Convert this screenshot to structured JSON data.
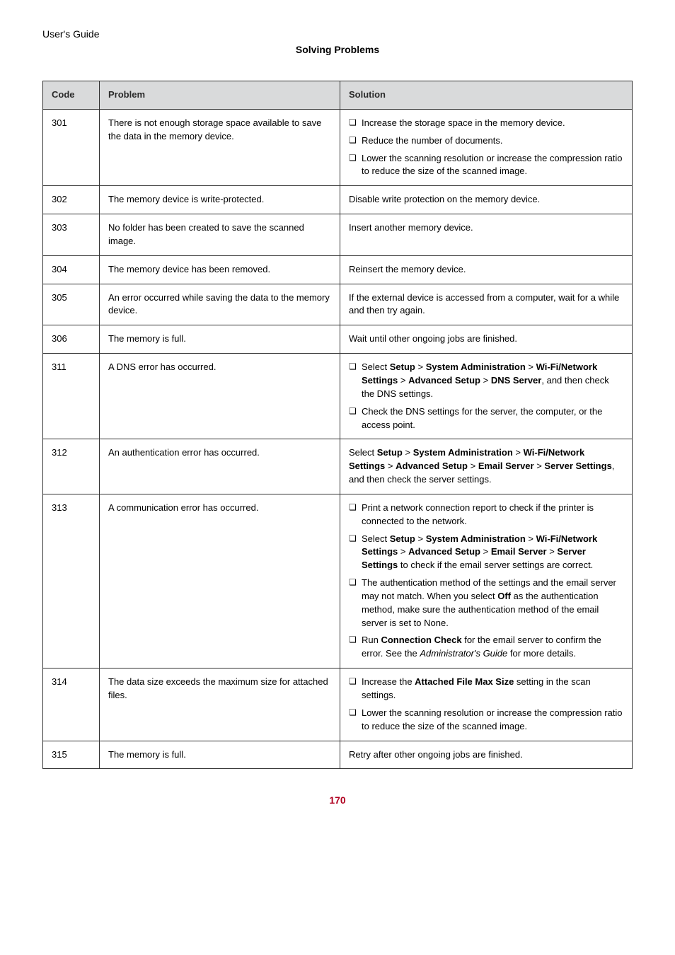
{
  "header": {
    "guide_title": "User's Guide",
    "section_title": "Solving Problems"
  },
  "table": {
    "headers": {
      "code": "Code",
      "problem": "Problem",
      "solution": "Solution"
    },
    "rows": [
      {
        "code": "301",
        "problem": "There is not enough storage space available to save the data in the memory device.",
        "solutions": [
          {
            "bullet": true,
            "html": "Increase the storage space in the memory device."
          },
          {
            "bullet": true,
            "html": "Reduce the number of documents."
          },
          {
            "bullet": true,
            "html": "Lower the scanning resolution or increase the compression ratio to reduce the size of the scanned image."
          }
        ]
      },
      {
        "code": "302",
        "problem": "The memory device is write-protected.",
        "solutions": [
          {
            "bullet": false,
            "html": "Disable write protection on the memory device."
          }
        ]
      },
      {
        "code": "303",
        "problem": "No folder has been created to save the scanned image.",
        "solutions": [
          {
            "bullet": false,
            "html": "Insert another memory device."
          }
        ]
      },
      {
        "code": "304",
        "problem": "The memory device has been removed.",
        "solutions": [
          {
            "bullet": false,
            "html": "Reinsert the memory device."
          }
        ]
      },
      {
        "code": "305",
        "problem": "An error occurred while saving the data to the memory device.",
        "solutions": [
          {
            "bullet": false,
            "html": "If the external device is accessed from a computer, wait for a while and then try again."
          }
        ]
      },
      {
        "code": "306",
        "problem": "The memory is full.",
        "solutions": [
          {
            "bullet": false,
            "html": "Wait until other ongoing jobs are finished."
          }
        ]
      },
      {
        "code": "311",
        "problem": "A DNS error has occurred.",
        "solutions": [
          {
            "bullet": true,
            "html": "Select <b>Setup</b> > <b>System Administration</b> > <b>Wi-Fi/Network Settings</b> > <b>Advanced Setup</b> > <b>DNS Server</b>, and then check the DNS settings."
          },
          {
            "bullet": true,
            "html": "Check the DNS settings for the server, the computer, or the access point."
          }
        ]
      },
      {
        "code": "312",
        "problem": "An authentication error has occurred.",
        "solutions": [
          {
            "bullet": false,
            "html": "Select <b>Setup</b> > <b>System Administration</b> > <b>Wi-Fi/Network Settings</b> > <b>Advanced Setup</b> > <b>Email Server</b> > <b>Server Settings</b>, and then check the server settings."
          }
        ]
      },
      {
        "code": "313",
        "problem": "A communication error has occurred.",
        "solutions": [
          {
            "bullet": true,
            "html": "Print a network connection report to check if the printer is connected to the network."
          },
          {
            "bullet": true,
            "html": "Select <b>Setup</b> > <b>System Administration</b> > <b>Wi-Fi/Network Settings</b> > <b>Advanced Setup</b> > <b>Email Server</b> > <b>Server Settings</b> to check if the email server settings are correct."
          },
          {
            "bullet": true,
            "html": "The authentication method of the settings and the email server may not match. When you select <b>Off</b> as the authentication method, make sure the authentication method of the email server is set to None."
          },
          {
            "bullet": true,
            "html": "Run <b>Connection Check</b> for the email server to confirm the error. See the <i>Administrator's Guide</i> for more details."
          }
        ]
      },
      {
        "code": "314",
        "problem": "The data size exceeds the maximum size for attached files.",
        "solutions": [
          {
            "bullet": true,
            "html": "Increase the <b>Attached File Max Size</b> setting in the scan settings."
          },
          {
            "bullet": true,
            "html": "Lower the scanning resolution or increase the compression ratio to reduce the size of the scanned image."
          }
        ]
      },
      {
        "code": "315",
        "problem": "The memory is full.",
        "solutions": [
          {
            "bullet": false,
            "html": "Retry after other ongoing jobs are finished."
          }
        ]
      }
    ]
  },
  "page_number": "170",
  "bullet_glyph": "❏"
}
